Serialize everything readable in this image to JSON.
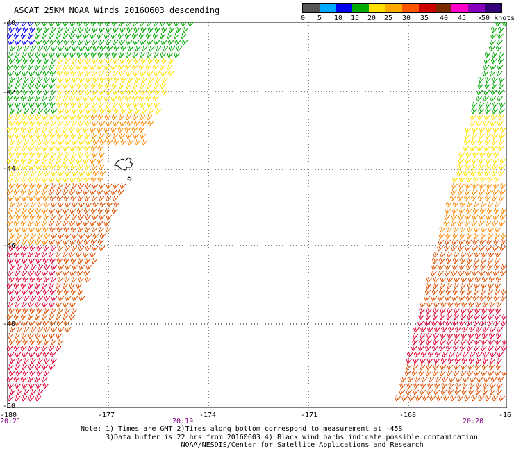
{
  "title": "ASCAT 25KM NOAA Winds 20160603 descending",
  "legend": {
    "unit_label": ">50 knots",
    "ticks": [
      "0",
      "5",
      "10",
      "15",
      "20",
      "25",
      "30",
      "35",
      "40",
      "45"
    ],
    "colors": [
      "#555555",
      "#00aaff",
      "#0000ee",
      "#00aa00",
      "#ffe000",
      "#ffaa00",
      "#ff5500",
      "#cc0000",
      "#7a2a00",
      "#ff00cc",
      "#8800bb",
      "#330077"
    ]
  },
  "map": {
    "lat_labels": [
      "-40",
      "-42",
      "-44",
      "-46",
      "-48",
      "-50"
    ],
    "lon_labels": [
      "-180",
      "-177",
      "-174",
      "-171",
      "-168",
      "-16"
    ],
    "lat_range": [
      -50,
      -40
    ],
    "lon_range": [
      -180,
      -165.3
    ],
    "time_labels": [
      "20:21",
      "20:19",
      "20:20"
    ],
    "barb_colors": {
      "light": "#0000ee",
      "moderate": "#00aa00",
      "fresh": "#ffe000",
      "strong": "#ff8800",
      "gale": "#e05000",
      "storm": "#e00030",
      "contamination": "#000000"
    }
  },
  "notes": {
    "line1": "Note: 1) Times are GMT 2)Times along bottom correspond to measurement at -45S",
    "line2": "      3)Data buffer is 22 hrs from 20160603 4) Black wind barbs indicate possible contamination",
    "line3": "                        NOAA/NESDIS/Center for Satellite Applications and Research"
  }
}
